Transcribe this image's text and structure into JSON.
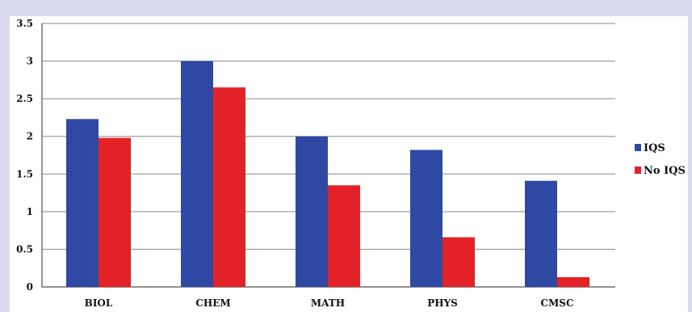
{
  "chart_data": {
    "type": "bar",
    "title": "",
    "xlabel": "",
    "ylabel": "",
    "categories": [
      "BIOL",
      "CHEM",
      "MATH",
      "PHYS",
      "CMSC"
    ],
    "series": [
      {
        "name": "IQS",
        "values": [
          2.23,
          3.0,
          2.0,
          1.82,
          1.41
        ],
        "color": "#2e49a4"
      },
      {
        "name": "No IQS",
        "values": [
          1.98,
          2.65,
          1.35,
          0.66,
          0.13
        ],
        "color": "#e32227"
      }
    ],
    "ylim": [
      0,
      3.5
    ],
    "yticks": [
      0,
      0.5,
      1,
      1.5,
      2,
      2.5,
      3,
      3.5
    ],
    "ytick_labels": [
      "0",
      "0.5",
      "1",
      "1.5",
      "2",
      "2.5",
      "3",
      "3.5"
    ],
    "grid": true,
    "legend_position": "right"
  }
}
